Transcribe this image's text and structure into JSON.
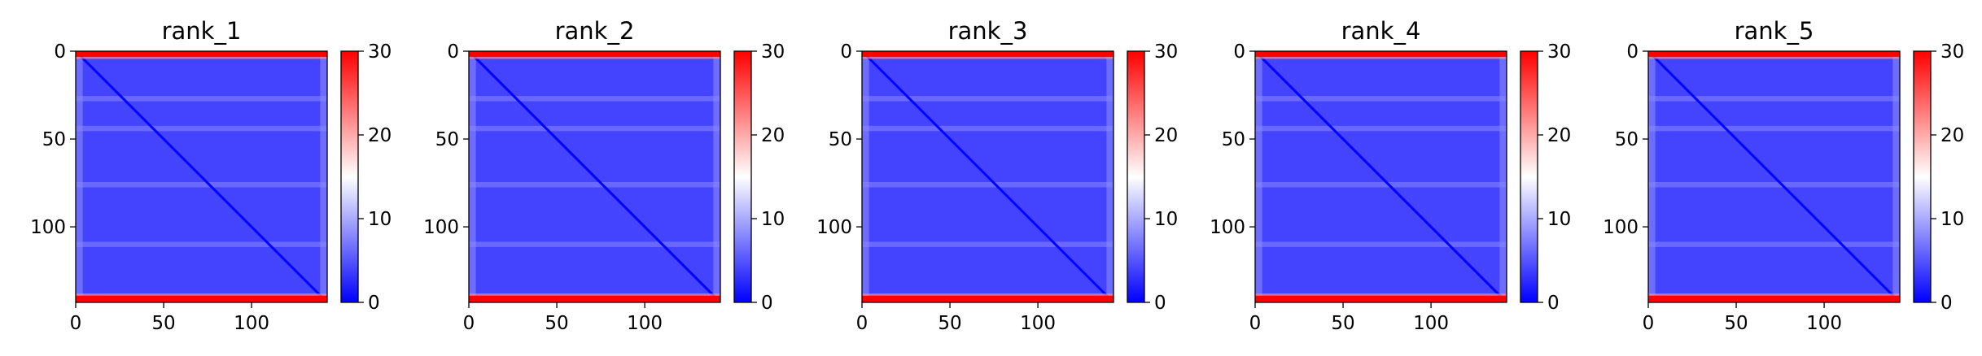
{
  "colors": {
    "low": "#0000ff",
    "mid": "#ffffff",
    "high": "#ff0000"
  },
  "chart_data": [
    {
      "type": "heatmap",
      "title": "rank_1",
      "xticks": [
        0,
        50,
        100
      ],
      "yticks": [
        0,
        50,
        100
      ],
      "xlim": [
        0,
        143
      ],
      "ylim": [
        143,
        0
      ],
      "colorbar": {
        "ticks": [
          0,
          10,
          20,
          30
        ],
        "range": [
          0,
          30
        ],
        "colormap": "bwr"
      },
      "matrix_size": 143,
      "edge_rows_value": 30,
      "body_value": 4,
      "diagonal_value": 0,
      "banded_rows": [
        27,
        44,
        76,
        110
      ],
      "banded_value": 8
    },
    {
      "type": "heatmap",
      "title": "rank_2",
      "xticks": [
        0,
        50,
        100
      ],
      "yticks": [
        0,
        50,
        100
      ],
      "xlim": [
        0,
        143
      ],
      "ylim": [
        143,
        0
      ],
      "colorbar": {
        "ticks": [
          0,
          10,
          20,
          30
        ],
        "range": [
          0,
          30
        ],
        "colormap": "bwr"
      },
      "matrix_size": 143,
      "edge_rows_value": 30,
      "body_value": 4,
      "diagonal_value": 0,
      "banded_rows": [
        27,
        44,
        76,
        110
      ],
      "banded_value": 8
    },
    {
      "type": "heatmap",
      "title": "rank_3",
      "xticks": [
        0,
        50,
        100
      ],
      "yticks": [
        0,
        50,
        100
      ],
      "xlim": [
        0,
        143
      ],
      "ylim": [
        143,
        0
      ],
      "colorbar": {
        "ticks": [
          0,
          10,
          20,
          30
        ],
        "range": [
          0,
          30
        ],
        "colormap": "bwr"
      },
      "matrix_size": 143,
      "edge_rows_value": 30,
      "body_value": 4,
      "diagonal_value": 0,
      "banded_rows": [
        27,
        44,
        76,
        110
      ],
      "banded_value": 8
    },
    {
      "type": "heatmap",
      "title": "rank_4",
      "xticks": [
        0,
        50,
        100
      ],
      "yticks": [
        0,
        50,
        100
      ],
      "xlim": [
        0,
        143
      ],
      "ylim": [
        143,
        0
      ],
      "colorbar": {
        "ticks": [
          0,
          10,
          20,
          30
        ],
        "range": [
          0,
          30
        ],
        "colormap": "bwr"
      },
      "matrix_size": 143,
      "edge_rows_value": 30,
      "body_value": 4,
      "diagonal_value": 0,
      "banded_rows": [
        27,
        44,
        76,
        110
      ],
      "banded_value": 8
    },
    {
      "type": "heatmap",
      "title": "rank_5",
      "xticks": [
        0,
        50,
        100
      ],
      "yticks": [
        0,
        50,
        100
      ],
      "xlim": [
        0,
        143
      ],
      "ylim": [
        143,
        0
      ],
      "colorbar": {
        "ticks": [
          0,
          10,
          20,
          30
        ],
        "range": [
          0,
          30
        ],
        "colormap": "bwr"
      },
      "matrix_size": 143,
      "edge_rows_value": 30,
      "body_value": 4,
      "diagonal_value": 0,
      "banded_rows": [
        27,
        44,
        76,
        110
      ],
      "banded_value": 8
    }
  ]
}
